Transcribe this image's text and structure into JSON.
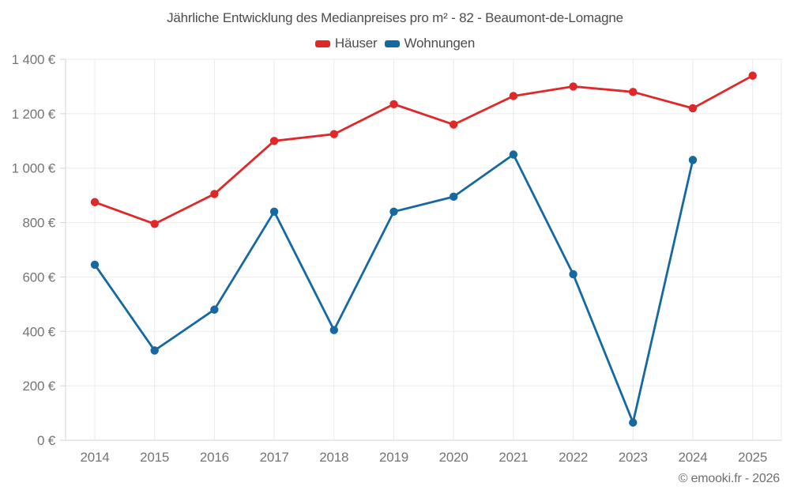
{
  "title": "Jährliche Entwicklung des Medianpreises pro m² - 82 - Beaumont-de-Lomagne",
  "footer": {
    "copyright": "© emooki.fr - 2026"
  },
  "colors": {
    "hauser": "#e12828",
    "wohnungen": "#1569a0",
    "grid": "#ebebeb",
    "axis": "#d6d6d6",
    "tick_text": "#757575",
    "title_text": "#4c4c4c",
    "background": "#ffffff"
  },
  "chart_data": {
    "type": "line",
    "title": "Jährliche Entwicklung des Medianpreises pro m² - 82 - Beaumont-de-Lomagne",
    "categories": [
      "2014",
      "2015",
      "2016",
      "2017",
      "2018",
      "2019",
      "2020",
      "2021",
      "2022",
      "2023",
      "2024",
      "2025"
    ],
    "series": [
      {
        "name": "Häuser",
        "color": "#e12828",
        "values": [
          875,
          795,
          905,
          1100,
          1125,
          1235,
          1160,
          1265,
          1300,
          1280,
          1220,
          1340
        ]
      },
      {
        "name": "Wohnungen",
        "color": "#1569a0",
        "values": [
          645,
          330,
          480,
          840,
          405,
          840,
          895,
          1050,
          610,
          65,
          1030,
          null
        ]
      }
    ],
    "unit": "€",
    "ylim": [
      0,
      1400
    ],
    "ytick_step": 200,
    "ytick_labels": [
      "0 €",
      "200 €",
      "400 €",
      "600 €",
      "800 €",
      "1 000 €",
      "1 200 €",
      "1 400 €"
    ],
    "grid": true,
    "legend_position": "top",
    "markers": true
  }
}
